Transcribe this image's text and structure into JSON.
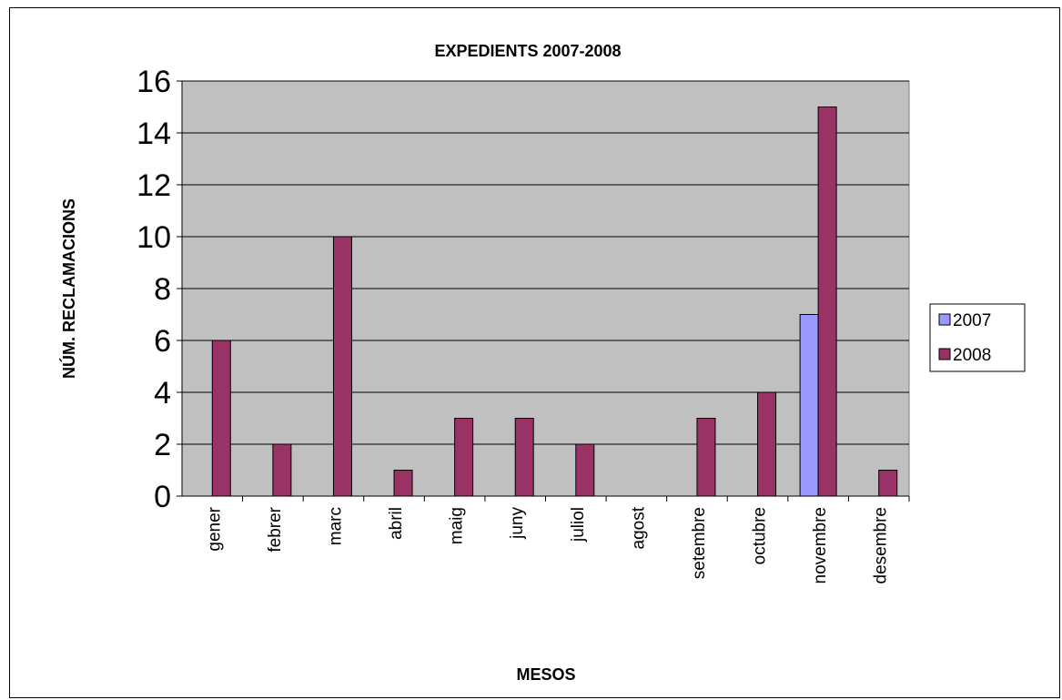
{
  "chart_data": {
    "type": "bar",
    "title": "EXPEDIENTS 2007-2008",
    "xlabel": "MESOS",
    "ylabel": "NÚM. RECLAMACIONS",
    "categories": [
      "gener",
      "febrer",
      "marc",
      "abril",
      "maig",
      "juny",
      "juliol",
      "agost",
      "setembre",
      "octubre",
      "novembre",
      "desembre"
    ],
    "series": [
      {
        "name": "2007",
        "values": [
          0,
          0,
          0,
          0,
          0,
          0,
          0,
          0,
          0,
          0,
          7,
          0
        ],
        "color": "#9999ff"
      },
      {
        "name": "2008",
        "values": [
          6,
          2,
          10,
          1,
          3,
          3,
          2,
          0,
          3,
          4,
          15,
          1
        ],
        "color": "#993366"
      }
    ],
    "ylim": [
      0,
      16
    ],
    "yticks": [
      "0",
      "2",
      "4",
      "6",
      "8",
      "10",
      "12",
      "14",
      "16"
    ],
    "grid": true,
    "plot_background": "#c0c0c0",
    "legend_position": "right"
  }
}
